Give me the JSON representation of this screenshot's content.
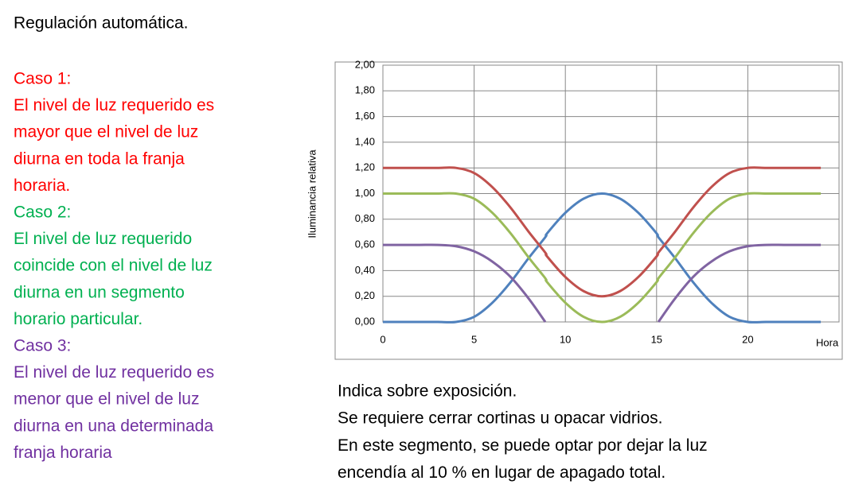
{
  "heading": "Regulación automática.",
  "cases": [
    {
      "color": "#ff0000",
      "lines": [
        "Caso 1:",
        "El nivel de luz requerido es",
        "mayor que el nivel de luz",
        "diurna en toda la franja",
        "horaria."
      ]
    },
    {
      "color": "#00b050",
      "lines": [
        "Caso 2:",
        "El nivel de luz requerido",
        "coincide con el nivel de luz",
        "diurna en un segmento",
        "horario particular."
      ]
    },
    {
      "color": "#7030a0",
      "lines": [
        "Caso 3:",
        "El nivel de luz requerido es",
        "menor que el nivel de luz",
        "diurna en una determinada",
        "franja horaria"
      ]
    }
  ],
  "notes": [
    "Indica sobre exposición.",
    "Se requiere cerrar cortinas u opacar vidrios.",
    "En este segmento, se puede optar por dejar la luz",
    "encendía al 10 % en lugar de apagado total."
  ],
  "chart_data": {
    "type": "line",
    "xlabel": "Hora",
    "ylabel": "Iluminancia relativa",
    "x": [
      0,
      1,
      2,
      3,
      4,
      5,
      6,
      7,
      8,
      8.9,
      9,
      10,
      11,
      12,
      13,
      14,
      15,
      15.1,
      16,
      17,
      18,
      19,
      20,
      21,
      22,
      23,
      24
    ],
    "series": [
      {
        "color": "#4f81bd",
        "values": [
          0,
          0,
          0,
          0,
          0,
          0.04,
          0.15,
          0.31,
          0.5,
          0.66,
          0.69,
          0.85,
          0.96,
          1,
          0.96,
          0.85,
          0.69,
          0.66,
          0.5,
          0.31,
          0.15,
          0.04,
          0,
          0,
          0,
          0,
          0
        ]
      },
      {
        "color": "#c0504d",
        "values": [
          1.2,
          1.2,
          1.2,
          1.2,
          1.2,
          1.16,
          1.05,
          0.89,
          0.7,
          0.54,
          0.51,
          0.35,
          0.24,
          0.2,
          0.24,
          0.35,
          0.51,
          0.54,
          0.7,
          0.89,
          1.05,
          1.16,
          1.2,
          1.2,
          1.2,
          1.2,
          1.2
        ]
      },
      {
        "color": "#9bbb59",
        "values": [
          1,
          1,
          1,
          1,
          1,
          0.96,
          0.85,
          0.69,
          0.5,
          0.34,
          0.31,
          0.15,
          0.04,
          0,
          0.04,
          0.15,
          0.31,
          0.34,
          0.5,
          0.69,
          0.85,
          0.96,
          1,
          1,
          1,
          1,
          1
        ]
      },
      {
        "color": "#8064a2",
        "values": [
          0.6,
          0.6,
          0.6,
          0.6,
          0.59,
          0.55,
          0.47,
          0.35,
          0.18,
          0,
          null,
          null,
          null,
          null,
          null,
          null,
          null,
          0,
          0.18,
          0.35,
          0.47,
          0.55,
          0.59,
          0.6,
          0.6,
          0.6,
          0.6
        ]
      }
    ],
    "xlim": [
      0,
      25
    ],
    "xticks": [
      0,
      5,
      10,
      15,
      20
    ],
    "ylim": [
      0,
      2
    ],
    "yticks": [
      {
        "value": 0,
        "label": "0,00"
      },
      {
        "value": 0.2,
        "label": "0,20"
      },
      {
        "value": 0.4,
        "label": "0,40"
      },
      {
        "value": 0.6,
        "label": "0,60"
      },
      {
        "value": 0.8,
        "label": "0,80"
      },
      {
        "value": 1,
        "label": "1,00"
      },
      {
        "value": 1.2,
        "label": "1,20"
      },
      {
        "value": 1.4,
        "label": "1,40"
      },
      {
        "value": 1.6,
        "label": "1,60"
      },
      {
        "value": 1.8,
        "label": "1,80"
      },
      {
        "value": 2,
        "label": "2,00"
      }
    ],
    "grid": true
  }
}
